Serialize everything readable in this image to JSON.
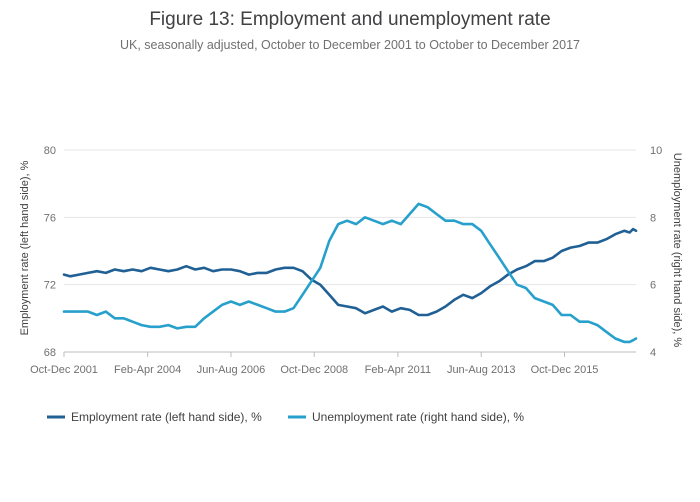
{
  "chart_data": {
    "type": "line",
    "title": "Figure 13: Employment and unemployment rate",
    "subtitle": "UK, seasonally adjusted, October to December 2001 to October to December 2017",
    "ylabel_left": "Employment rate (left hand side), %",
    "ylabel_right": "Unemployment rate (right hand side), %",
    "ylim_left": [
      68,
      80
    ],
    "yticks_left": [
      "68",
      "72",
      "76",
      "80"
    ],
    "ylim_right": [
      4,
      10
    ],
    "yticks_right": [
      "4",
      "6",
      "8",
      "10"
    ],
    "x_range": [
      2001.83,
      2017.83
    ],
    "x_ticks": [
      {
        "label": "Oct-Dec 2001",
        "x": 2001.83
      },
      {
        "label": "Feb-Apr 2004",
        "x": 2004.17
      },
      {
        "label": "Jun-Aug 2006",
        "x": 2006.5
      },
      {
        "label": "Oct-Dec 2008",
        "x": 2008.83
      },
      {
        "label": "Feb-Apr 2011",
        "x": 2011.17
      },
      {
        "label": "Jun-Aug 2013",
        "x": 2013.5
      },
      {
        "label": "Oct-Dec 2015",
        "x": 2015.83
      }
    ],
    "legend_position": "bottom-left",
    "series": [
      {
        "name": "Employment rate (left hand side), %",
        "axis": "left",
        "color": "#206095",
        "points": [
          [
            2001.83,
            72.6
          ],
          [
            2002.0,
            72.5
          ],
          [
            2002.25,
            72.6
          ],
          [
            2002.5,
            72.7
          ],
          [
            2002.75,
            72.8
          ],
          [
            2003.0,
            72.7
          ],
          [
            2003.25,
            72.9
          ],
          [
            2003.5,
            72.8
          ],
          [
            2003.75,
            72.9
          ],
          [
            2004.0,
            72.8
          ],
          [
            2004.25,
            73.0
          ],
          [
            2004.5,
            72.9
          ],
          [
            2004.75,
            72.8
          ],
          [
            2005.0,
            72.9
          ],
          [
            2005.25,
            73.1
          ],
          [
            2005.5,
            72.9
          ],
          [
            2005.75,
            73.0
          ],
          [
            2006.0,
            72.8
          ],
          [
            2006.25,
            72.9
          ],
          [
            2006.5,
            72.9
          ],
          [
            2006.75,
            72.8
          ],
          [
            2007.0,
            72.6
          ],
          [
            2007.25,
            72.7
          ],
          [
            2007.5,
            72.7
          ],
          [
            2007.75,
            72.9
          ],
          [
            2008.0,
            73.0
          ],
          [
            2008.25,
            73.0
          ],
          [
            2008.5,
            72.8
          ],
          [
            2008.75,
            72.3
          ],
          [
            2009.0,
            72.0
          ],
          [
            2009.25,
            71.4
          ],
          [
            2009.5,
            70.8
          ],
          [
            2009.75,
            70.7
          ],
          [
            2010.0,
            70.6
          ],
          [
            2010.25,
            70.3
          ],
          [
            2010.5,
            70.5
          ],
          [
            2010.75,
            70.7
          ],
          [
            2011.0,
            70.4
          ],
          [
            2011.25,
            70.6
          ],
          [
            2011.5,
            70.5
          ],
          [
            2011.75,
            70.2
          ],
          [
            2012.0,
            70.2
          ],
          [
            2012.25,
            70.4
          ],
          [
            2012.5,
            70.7
          ],
          [
            2012.75,
            71.1
          ],
          [
            2013.0,
            71.4
          ],
          [
            2013.25,
            71.2
          ],
          [
            2013.5,
            71.5
          ],
          [
            2013.75,
            71.9
          ],
          [
            2014.0,
            72.2
          ],
          [
            2014.25,
            72.6
          ],
          [
            2014.5,
            72.9
          ],
          [
            2014.75,
            73.1
          ],
          [
            2015.0,
            73.4
          ],
          [
            2015.25,
            73.4
          ],
          [
            2015.5,
            73.6
          ],
          [
            2015.75,
            74.0
          ],
          [
            2016.0,
            74.2
          ],
          [
            2016.25,
            74.3
          ],
          [
            2016.5,
            74.5
          ],
          [
            2016.75,
            74.5
          ],
          [
            2017.0,
            74.7
          ],
          [
            2017.25,
            75.0
          ],
          [
            2017.5,
            75.2
          ],
          [
            2017.65,
            75.1
          ],
          [
            2017.75,
            75.3
          ],
          [
            2017.83,
            75.2
          ]
        ]
      },
      {
        "name": "Unemployment rate (right hand side), %",
        "axis": "right",
        "color": "#27a0cc",
        "points": [
          [
            2001.83,
            5.2
          ],
          [
            2002.0,
            5.2
          ],
          [
            2002.25,
            5.2
          ],
          [
            2002.5,
            5.2
          ],
          [
            2002.75,
            5.1
          ],
          [
            2003.0,
            5.2
          ],
          [
            2003.25,
            5.0
          ],
          [
            2003.5,
            5.0
          ],
          [
            2003.75,
            4.9
          ],
          [
            2004.0,
            4.8
          ],
          [
            2004.25,
            4.75
          ],
          [
            2004.5,
            4.75
          ],
          [
            2004.75,
            4.8
          ],
          [
            2005.0,
            4.7
          ],
          [
            2005.25,
            4.75
          ],
          [
            2005.5,
            4.75
          ],
          [
            2005.75,
            5.0
          ],
          [
            2006.0,
            5.2
          ],
          [
            2006.25,
            5.4
          ],
          [
            2006.5,
            5.5
          ],
          [
            2006.75,
            5.4
          ],
          [
            2007.0,
            5.5
          ],
          [
            2007.25,
            5.4
          ],
          [
            2007.5,
            5.3
          ],
          [
            2007.75,
            5.2
          ],
          [
            2008.0,
            5.2
          ],
          [
            2008.25,
            5.3
          ],
          [
            2008.5,
            5.7
          ],
          [
            2008.75,
            6.1
          ],
          [
            2009.0,
            6.5
          ],
          [
            2009.25,
            7.3
          ],
          [
            2009.5,
            7.8
          ],
          [
            2009.75,
            7.9
          ],
          [
            2010.0,
            7.8
          ],
          [
            2010.25,
            8.0
          ],
          [
            2010.5,
            7.9
          ],
          [
            2010.75,
            7.8
          ],
          [
            2011.0,
            7.9
          ],
          [
            2011.25,
            7.8
          ],
          [
            2011.5,
            8.1
          ],
          [
            2011.75,
            8.4
          ],
          [
            2012.0,
            8.3
          ],
          [
            2012.25,
            8.1
          ],
          [
            2012.5,
            7.9
          ],
          [
            2012.75,
            7.9
          ],
          [
            2013.0,
            7.8
          ],
          [
            2013.25,
            7.8
          ],
          [
            2013.5,
            7.6
          ],
          [
            2013.75,
            7.2
          ],
          [
            2014.0,
            6.8
          ],
          [
            2014.25,
            6.4
          ],
          [
            2014.5,
            6.0
          ],
          [
            2014.75,
            5.9
          ],
          [
            2015.0,
            5.6
          ],
          [
            2015.25,
            5.5
          ],
          [
            2015.5,
            5.4
          ],
          [
            2015.75,
            5.1
          ],
          [
            2016.0,
            5.1
          ],
          [
            2016.25,
            4.9
          ],
          [
            2016.5,
            4.9
          ],
          [
            2016.75,
            4.8
          ],
          [
            2017.0,
            4.6
          ],
          [
            2017.25,
            4.4
          ],
          [
            2017.5,
            4.3
          ],
          [
            2017.65,
            4.3
          ],
          [
            2017.75,
            4.35
          ],
          [
            2017.83,
            4.4
          ]
        ]
      }
    ]
  }
}
